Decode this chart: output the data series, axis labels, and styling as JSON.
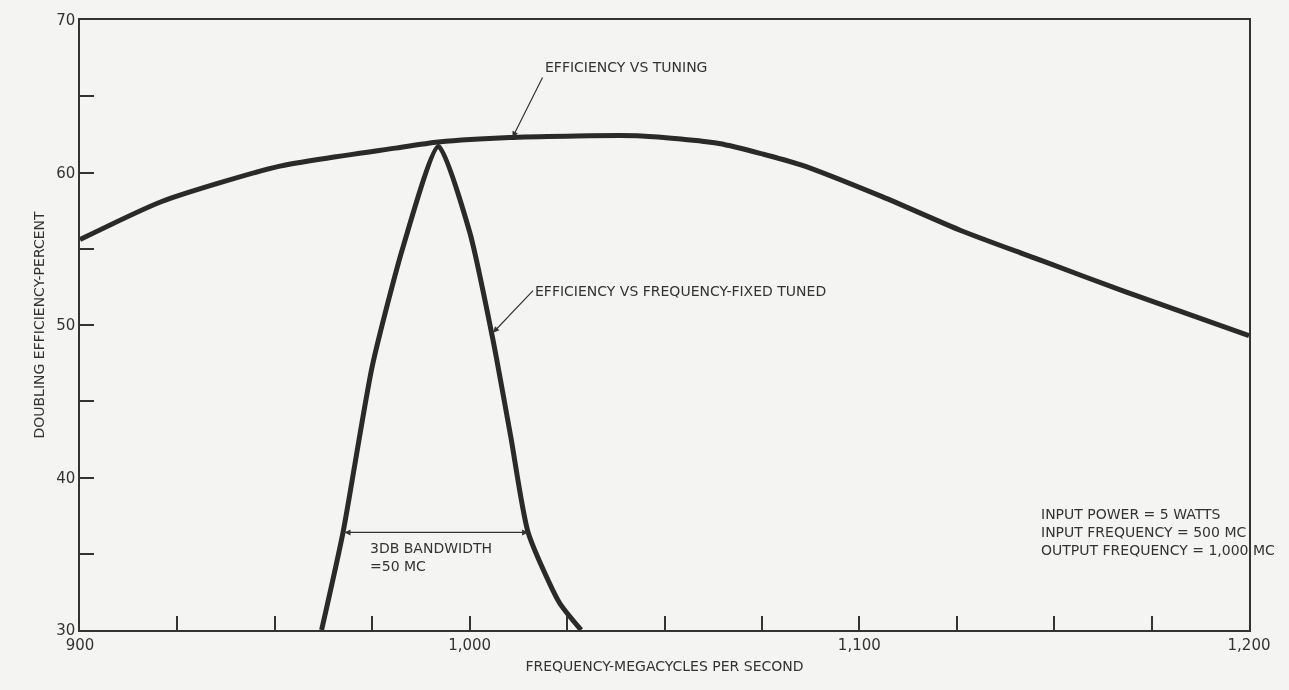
{
  "chart_data": {
    "type": "line",
    "xlabel": "FREQUENCY-MEGACYCLES PER SECOND",
    "ylabel": "DOUBLING EFFICIENCY-PERCENT",
    "series": [
      {
        "color": "#2a2a2a",
        "x": [
          900,
          921,
          951,
          981,
          992,
          1011,
          1044,
          1064,
          1085,
          1106,
          1126,
          1147,
          1168,
          1200
        ],
        "values": [
          55.6,
          58.1,
          60.4,
          61.6,
          62.0,
          62.3,
          62.4,
          61.9,
          60.5,
          58.4,
          56.2,
          54.2,
          52.2,
          49.3
        ]
      },
      {
        "color": "#2a2a2a",
        "x": [
          962,
          967.5,
          975,
          983,
          992,
          1000,
          1006,
          1010.6,
          1015,
          1023,
          1028.6
        ],
        "values": [
          30,
          36.4,
          47.3,
          55.2,
          61.7,
          56.1,
          49.0,
          42.6,
          36.4,
          31.8,
          30
        ]
      }
    ],
    "xlim": [
      900,
      1200
    ],
    "ylim": [
      30,
      70
    ],
    "xticks": [
      900,
      {
        "value": 925,
        "label": null
      },
      {
        "value": 950,
        "label": null
      },
      {
        "value": 975,
        "label": null
      },
      {
        "value": 1000,
        "label": "1,000"
      },
      {
        "value": 1025,
        "label": null
      },
      {
        "value": 1050,
        "label": null
      },
      {
        "value": 1075,
        "label": null
      },
      {
        "value": 1100,
        "label": "1,100"
      },
      {
        "value": 1125,
        "label": null
      },
      {
        "value": 1150,
        "label": null
      },
      {
        "value": 1175,
        "label": null
      },
      {
        "value": 1200,
        "label": "1,200"
      }
    ],
    "yticks": [
      30,
      {
        "value": 35,
        "label": null
      },
      40,
      {
        "value": 45,
        "label": null
      },
      50,
      {
        "value": 55,
        "label": null
      },
      60,
      {
        "value": 65,
        "label": null
      },
      70
    ],
    "annotations": [
      {
        "text": "EFFICIENCY VS TUNING",
        "x": 1011,
        "y": 62.3
      },
      {
        "text": "EFFICIENCY VS FREQUENCY-FIXED TUNED",
        "x": 1006,
        "y": 49.5
      },
      "3DB BANDWIDTH\n=50 MC",
      "INPUT POWER = 5 WATTS\nINPUT FREQUENCY = 500 MC\nOUTPUT FREQUENCY = 1,000 MC"
    ],
    "marker": "none",
    "line_style": "solid"
  }
}
